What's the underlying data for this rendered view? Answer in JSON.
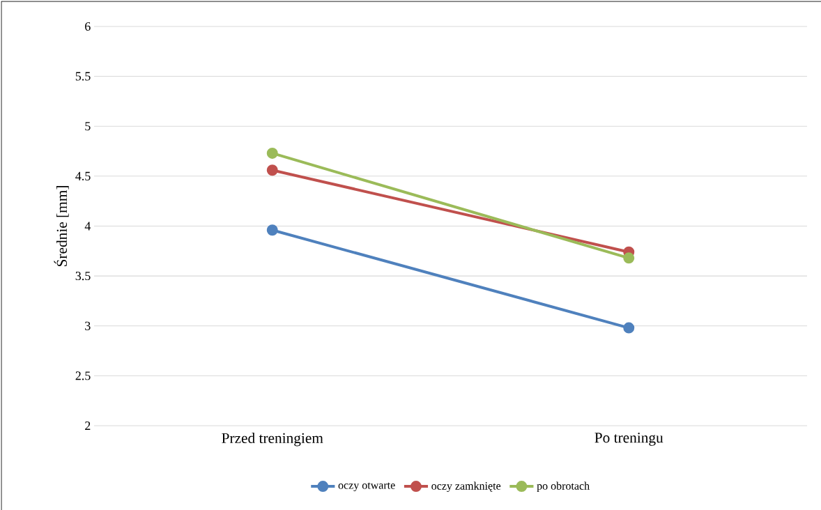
{
  "chart_data": {
    "type": "line",
    "ylabel": "Średnie [mm]",
    "categories": [
      "Przed treningiem",
      "Po treningu"
    ],
    "series": [
      {
        "name": "oczy otwarte",
        "color": "#4f81bd",
        "values": [
          3.96,
          2.98
        ]
      },
      {
        "name": "oczy zamknięte",
        "color": "#c0504d",
        "values": [
          4.56,
          3.74
        ]
      },
      {
        "name": "po obrotach",
        "color": "#9bbb59",
        "values": [
          4.73,
          3.68
        ]
      }
    ],
    "ylim": [
      2,
      6
    ],
    "yticks": [
      2,
      2.5,
      3,
      3.5,
      4,
      4.5,
      5,
      5.5,
      6
    ],
    "grid": "y",
    "legend": "bottom",
    "marker": "circle",
    "line_style": "solid"
  }
}
